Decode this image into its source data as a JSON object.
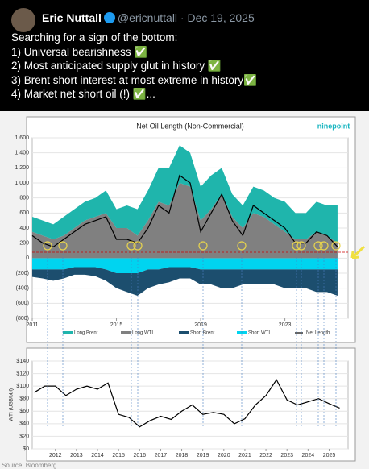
{
  "tweet": {
    "name": "Eric Nuttall",
    "handle": "@ericnuttall · Dec 19, 2025",
    "lines": [
      "Searching for a sign of the bottom:",
      "1) Universal bearishness ✅",
      "2) Most anticipated supply glut in history ✅",
      "3) Brent short interest at most extreme in history✅",
      "4) Market net short oil (!) ✅..."
    ],
    "logo": "ninepoint",
    "source": "Source: Bloomberg"
  },
  "chart_data": [
    {
      "type": "area",
      "title": "Net Oil Length (Non-Commercial)",
      "x": [
        2011,
        2011.5,
        2012,
        2012.5,
        2013,
        2013.5,
        2014,
        2014.5,
        2015,
        2015.5,
        2016,
        2016.5,
        2017,
        2017.5,
        2018,
        2018.5,
        2019,
        2019.5,
        2020,
        2020.5,
        2021,
        2021.5,
        2022,
        2022.5,
        2023,
        2023.5,
        2024,
        2024.5,
        2025,
        2025.5
      ],
      "series": [
        {
          "name": "Long Brent",
          "color": "#1fb5ac",
          "values": [
            200,
            200,
            200,
            250,
            250,
            250,
            250,
            300,
            250,
            300,
            350,
            400,
            450,
            500,
            500,
            450,
            450,
            450,
            350,
            300,
            300,
            350,
            350,
            350,
            400,
            350,
            350,
            400,
            400,
            500
          ]
        },
        {
          "name": "Long WTI",
          "color": "#808080",
          "values": [
            350,
            300,
            250,
            300,
            400,
            500,
            550,
            600,
            400,
            400,
            300,
            500,
            750,
            700,
            1000,
            950,
            500,
            650,
            850,
            550,
            400,
            600,
            550,
            450,
            350,
            250,
            250,
            350,
            300,
            200
          ]
        },
        {
          "name": "Short Brent",
          "color": "#1c4e6e",
          "values": [
            -100,
            -120,
            -150,
            -120,
            -100,
            -100,
            -120,
            -150,
            -200,
            -250,
            -300,
            -250,
            -200,
            -200,
            -150,
            -150,
            -200,
            -200,
            -250,
            -250,
            -200,
            -200,
            -200,
            -200,
            -250,
            -250,
            -250,
            -300,
            -300,
            -350
          ]
        },
        {
          "name": "Short WTI",
          "color": "#00d4f0",
          "values": [
            -150,
            -150,
            -150,
            -150,
            -120,
            -120,
            -120,
            -150,
            -200,
            -200,
            -200,
            -150,
            -150,
            -120,
            -120,
            -120,
            -150,
            -150,
            -150,
            -150,
            -150,
            -150,
            -150,
            -150,
            -150,
            -150,
            -150,
            -150,
            -150,
            -150
          ]
        },
        {
          "name": "Net Length",
          "color": "#000000",
          "type": "line",
          "values": [
            300,
            200,
            150,
            250,
            350,
            450,
            500,
            550,
            250,
            250,
            200,
            400,
            700,
            600,
            1100,
            1000,
            350,
            600,
            850,
            500,
            300,
            700,
            600,
            500,
            400,
            200,
            200,
            350,
            300,
            150
          ]
        }
      ],
      "xlim": [
        2011,
        2026
      ],
      "xticks": [
        2011,
        2015,
        2019,
        2023
      ],
      "ylim": [
        -800,
        1600
      ],
      "yticks": [
        {
          "value": 1600,
          "label": "1,600"
        },
        {
          "value": 1400,
          "label": "1,400"
        },
        {
          "value": 1200,
          "label": "1,200"
        },
        {
          "value": 1000,
          "label": "1,000"
        },
        800,
        600,
        400,
        200,
        0,
        {
          "value": -200,
          "label": "(200)"
        },
        {
          "value": -400,
          "label": "(400)"
        },
        {
          "value": -600,
          "label": "(600)"
        },
        {
          "value": -800,
          "label": "(800)"
        }
      ],
      "grid": true
    },
    {
      "type": "line",
      "y_label": "WTI (US$/bbl)",
      "x": [
        2011,
        2011.5,
        2012,
        2012.5,
        2013,
        2013.5,
        2014,
        2014.5,
        2015,
        2015.5,
        2016,
        2016.5,
        2017,
        2017.5,
        2018,
        2018.5,
        2019,
        2019.5,
        2020,
        2020.5,
        2021,
        2021.5,
        2022,
        2022.5,
        2023,
        2023.5,
        2024,
        2024.5,
        2025,
        2025.5
      ],
      "series": [
        {
          "name": "WTI",
          "color": "#000000",
          "values": [
            90,
            100,
            100,
            85,
            95,
            100,
            95,
            105,
            55,
            50,
            35,
            45,
            52,
            47,
            60,
            70,
            55,
            58,
            55,
            40,
            48,
            70,
            85,
            110,
            78,
            70,
            75,
            80,
            72,
            65
          ]
        }
      ],
      "xlim": [
        2010.9,
        2025.9
      ],
      "xticks": [
        2012,
        2013,
        2014,
        2015,
        2016,
        2017,
        2018,
        2019,
        2020,
        2021,
        2022,
        2023,
        2024,
        2025
      ],
      "ylim": [
        0,
        140
      ],
      "yticks": [
        {
          "value": 140,
          "label": "$140"
        },
        {
          "value": 120,
          "label": "$120"
        },
        {
          "value": 100,
          "label": "$100"
        },
        {
          "value": 80,
          "label": "$80"
        },
        {
          "value": 60,
          "label": "$60"
        },
        {
          "value": 40,
          "label": "$40"
        },
        {
          "value": 20,
          "label": "$20"
        },
        {
          "value": 0,
          "label": "$0"
        }
      ],
      "grid": true
    }
  ]
}
